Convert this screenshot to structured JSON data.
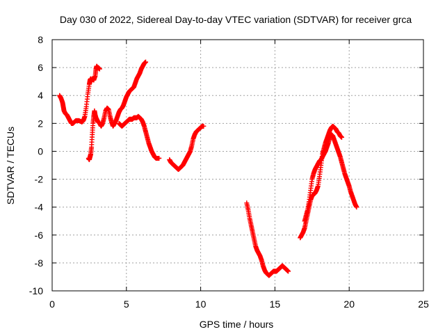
{
  "chart_data": {
    "type": "scatter",
    "title": "Day 030 of 2022, Sidereal Day-to-day VTEC variation (SDTVAR) for receiver grca",
    "xlabel": "GPS time / hours",
    "ylabel": "SDTVAR / TECUs",
    "xlim": [
      0,
      25
    ],
    "ylim": [
      -10,
      8
    ],
    "xticks": [
      0,
      5,
      10,
      15,
      20,
      25
    ],
    "yticks": [
      -10,
      -8,
      -6,
      -4,
      -2,
      0,
      2,
      4,
      6,
      8
    ],
    "grid": true,
    "legend": "none",
    "marker": "+",
    "color": "#ff0000",
    "series": [
      {
        "x": [
          0.5,
          0.6,
          0.7,
          0.75,
          0.8,
          0.9,
          1.0,
          1.1,
          1.2,
          1.3,
          1.4,
          1.5,
          1.6,
          1.8,
          2.0,
          2.1,
          2.2,
          2.3,
          2.4,
          2.5,
          2.55,
          2.6,
          2.65,
          2.7,
          2.8,
          2.9,
          2.95,
          3.0,
          3.05,
          3.1,
          3.2
        ],
        "y": [
          4.0,
          3.8,
          3.5,
          3.2,
          2.9,
          2.7,
          2.6,
          2.4,
          2.2,
          2.0,
          2.0,
          2.1,
          2.2,
          2.2,
          2.1,
          2.2,
          2.5,
          3.2,
          4.1,
          4.8,
          5.1,
          5.2,
          5.0,
          5.2,
          5.1,
          5.4,
          5.9,
          6.1,
          6.0,
          6.0,
          5.9
        ]
      },
      {
        "x": [
          2.45,
          2.5,
          2.55,
          2.6,
          2.65,
          2.7,
          2.75,
          2.8,
          2.85,
          2.9,
          2.95,
          3.0,
          3.1,
          3.2,
          3.3,
          3.4,
          3.5,
          3.6,
          3.7,
          3.8,
          3.9,
          4.0,
          4.1,
          4.2,
          4.3,
          4.4,
          4.5,
          4.6,
          4.7,
          4.8,
          4.9,
          5.0,
          5.1,
          5.2,
          5.3,
          5.4,
          5.5,
          5.6,
          5.7,
          5.8,
          5.9,
          6.0,
          6.1,
          6.2,
          6.3
        ],
        "y": [
          -0.5,
          -0.6,
          -0.4,
          -0.2,
          0.3,
          1.2,
          2.0,
          2.5,
          2.9,
          2.6,
          2.4,
          2.3,
          2.1,
          2.0,
          1.8,
          2.0,
          2.4,
          2.9,
          3.1,
          3.0,
          2.5,
          2.1,
          1.8,
          2.0,
          2.2,
          2.5,
          2.8,
          3.0,
          3.1,
          3.3,
          3.6,
          3.9,
          4.1,
          4.3,
          4.4,
          4.5,
          4.6,
          4.9,
          5.2,
          5.4,
          5.6,
          5.9,
          6.1,
          6.3,
          6.4
        ]
      },
      {
        "x": [
          4.5,
          4.6,
          4.7,
          4.8,
          4.9,
          5.0,
          5.1,
          5.2,
          5.3,
          5.4,
          5.5,
          5.6,
          5.7,
          5.8,
          5.9,
          6.0,
          6.1,
          6.2,
          6.3,
          6.4,
          6.5,
          6.6,
          6.7,
          6.8,
          6.9,
          7.0,
          7.1,
          7.2
        ],
        "y": [
          2.0,
          1.9,
          1.8,
          1.9,
          2.0,
          2.1,
          2.2,
          2.3,
          2.3,
          2.3,
          2.4,
          2.4,
          2.4,
          2.5,
          2.4,
          2.3,
          2.1,
          1.8,
          1.4,
          1.0,
          0.6,
          0.3,
          0.0,
          -0.2,
          -0.4,
          -0.5,
          -0.5,
          -0.5
        ]
      },
      {
        "x": [
          7.9,
          8.0,
          8.1,
          8.2,
          8.3,
          8.4,
          8.5,
          8.6,
          8.7,
          8.8,
          8.9,
          9.0,
          9.1,
          9.2,
          9.3,
          9.4,
          9.5,
          9.6,
          9.7,
          9.8,
          9.9,
          10.0,
          10.1,
          10.2
        ],
        "y": [
          -0.6,
          -0.8,
          -0.9,
          -1.0,
          -1.1,
          -1.2,
          -1.3,
          -1.2,
          -1.1,
          -1.0,
          -0.8,
          -0.6,
          -0.4,
          -0.2,
          0.0,
          0.4,
          0.9,
          1.2,
          1.4,
          1.5,
          1.6,
          1.7,
          1.8,
          1.8
        ]
      },
      {
        "x": [
          13.1,
          13.2,
          13.3,
          13.4,
          13.5,
          13.6,
          13.7,
          13.8,
          13.9,
          14.0,
          14.1,
          14.2,
          14.3,
          14.4,
          14.5,
          14.6,
          14.7,
          14.8,
          14.9,
          15.0,
          15.1,
          15.2,
          15.3,
          15.4,
          15.5,
          15.6,
          15.7,
          15.8,
          15.9
        ],
        "y": [
          -3.7,
          -4.2,
          -4.8,
          -5.3,
          -5.8,
          -6.3,
          -6.8,
          -7.1,
          -7.3,
          -7.5,
          -7.8,
          -8.2,
          -8.5,
          -8.7,
          -8.8,
          -8.9,
          -8.8,
          -8.7,
          -8.6,
          -8.6,
          -8.6,
          -8.5,
          -8.4,
          -8.3,
          -8.2,
          -8.3,
          -8.4,
          -8.5,
          -8.6
        ]
      },
      {
        "x": [
          16.7,
          16.8,
          16.9,
          17.0,
          17.1,
          17.2,
          17.3,
          17.4,
          17.5,
          17.6,
          17.7,
          17.8,
          17.9,
          18.0,
          18.1,
          18.2,
          18.3,
          18.4,
          18.5,
          18.6,
          18.7,
          18.8,
          18.9,
          19.0,
          19.1,
          19.2,
          19.3,
          19.4,
          19.5
        ],
        "y": [
          -6.2,
          -6.0,
          -5.8,
          -5.5,
          -5.0,
          -4.5,
          -4.0,
          -3.5,
          -3.2,
          -3.1,
          -3.0,
          -2.8,
          -2.5,
          -1.8,
          -1.0,
          -0.2,
          0.2,
          0.6,
          0.9,
          1.2,
          1.5,
          1.7,
          1.8,
          1.7,
          1.6,
          1.4,
          1.3,
          1.1,
          1.0
        ]
      },
      {
        "x": [
          17.0,
          17.1,
          17.2,
          17.3,
          17.4,
          17.5,
          17.6,
          17.7,
          17.8,
          17.9,
          18.0,
          18.1,
          18.2,
          18.3,
          18.4,
          18.5,
          18.6,
          18.7,
          18.8,
          18.9,
          19.0,
          19.1,
          19.2,
          19.3,
          19.4,
          19.5,
          19.6,
          19.7,
          19.8,
          19.9,
          20.0,
          20.1,
          20.2,
          20.3,
          20.4,
          20.5
        ],
        "y": [
          -5.0,
          -4.6,
          -4.2,
          -3.6,
          -2.8,
          -2.0,
          -1.6,
          -1.3,
          -1.1,
          -0.9,
          -0.7,
          -0.6,
          -0.4,
          -0.2,
          0.0,
          0.3,
          0.6,
          1.0,
          1.2,
          1.1,
          0.8,
          0.5,
          0.2,
          -0.1,
          -0.4,
          -0.8,
          -1.2,
          -1.6,
          -1.9,
          -2.2,
          -2.5,
          -2.9,
          -3.2,
          -3.5,
          -3.8,
          -4.0
        ]
      }
    ]
  }
}
